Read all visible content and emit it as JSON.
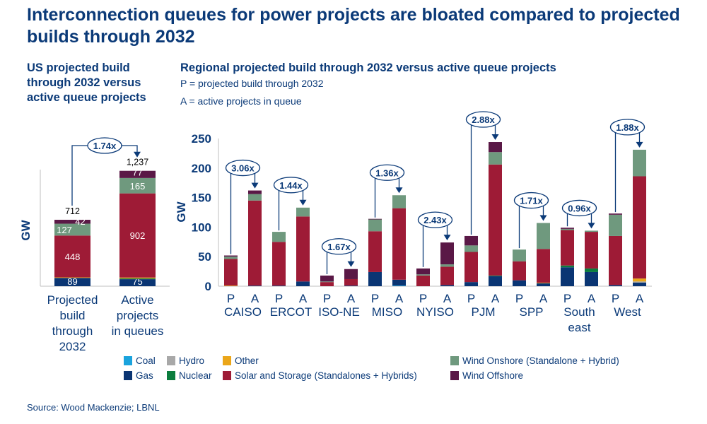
{
  "title": "Interconnection queues for power projects are bloated compared to projected builds through 2032",
  "left_subtitle": "US projected build through 2032 versus active queue projects",
  "right_subtitle": "Regional projected build through 2032 versus active queue projects",
  "legend_note_p": "P = projected build through 2032",
  "legend_note_a": "A = active projects in queue",
  "source": "Source: Wood Mackenzie; LBNL",
  "colors": {
    "coal": "#1aa3dd",
    "gas": "#0a3573",
    "hydro": "#a8a8a8",
    "nuclear": "#0b7d3e",
    "other": "#eba619",
    "solar": "#9e1b36",
    "wind_onshore": "#6f997e",
    "wind_offshore": "#5a1846"
  },
  "chart_data": [
    {
      "type": "bar",
      "stacked": true,
      "ylabel": "GW",
      "categories": [
        "Projected build through 2032",
        "Active projects in queues"
      ],
      "totals": [
        "712",
        "1,237"
      ],
      "ratio_label": "1.74x",
      "series": [
        {
          "key": "gas",
          "name": "Gas",
          "values": [
            89,
            75
          ],
          "labels": [
            "89",
            "75"
          ]
        },
        {
          "key": "nuclear",
          "name": "Nuclear",
          "values": [
            0,
            8
          ],
          "labels": [
            "",
            ""
          ]
        },
        {
          "key": "other",
          "name": "Other",
          "values": [
            6,
            10
          ],
          "labels": [
            "",
            ""
          ]
        },
        {
          "key": "solar",
          "name": "Solar and Storage (Standalones + Hybrids)",
          "values": [
            448,
            902
          ],
          "labels": [
            "448",
            "902"
          ]
        },
        {
          "key": "wind_onshore",
          "name": "Wind Onshore (Standalone + Hybrid)",
          "values": [
            127,
            165
          ],
          "labels": [
            "127",
            "165"
          ]
        },
        {
          "key": "wind_offshore",
          "name": "Wind Offshore",
          "values": [
            42,
            77
          ],
          "labels": [
            "42",
            "77"
          ]
        }
      ]
    },
    {
      "type": "bar",
      "stacked": true,
      "ylabel": "GW",
      "ylim": [
        0,
        250
      ],
      "yticks": [
        0,
        50,
        100,
        150,
        200,
        250
      ],
      "regions": [
        {
          "name": [
            "CAISO"
          ],
          "ratio": "3.06x"
        },
        {
          "name": [
            "ERCOT"
          ],
          "ratio": "1.44x"
        },
        {
          "name": [
            "ISO-NE"
          ],
          "ratio": "1.67x"
        },
        {
          "name": [
            "MISO"
          ],
          "ratio": "1.36x"
        },
        {
          "name": [
            "NYISO"
          ],
          "ratio": "2.43x"
        },
        {
          "name": [
            "PJM"
          ],
          "ratio": "2.88x"
        },
        {
          "name": [
            "SPP"
          ],
          "ratio": "1.71x"
        },
        {
          "name": [
            "South",
            "east"
          ],
          "ratio": "0.96x"
        },
        {
          "name": [
            "West"
          ],
          "ratio": "1.88x"
        }
      ],
      "bar_labels": [
        "P",
        "A"
      ],
      "series": [
        {
          "key": "coal",
          "name": "Coal",
          "values": [
            0,
            0,
            0,
            0,
            0,
            0,
            0,
            1,
            0,
            0,
            0,
            0,
            0,
            0,
            0,
            0,
            0,
            0
          ]
        },
        {
          "key": "gas",
          "name": "Gas",
          "values": [
            0,
            1,
            1,
            8,
            0,
            1,
            24,
            10,
            0,
            2,
            7,
            17,
            10,
            5,
            32,
            24,
            2,
            6
          ]
        },
        {
          "key": "hydro",
          "name": "Hydro",
          "values": [
            0,
            0,
            0,
            0,
            0,
            0,
            0,
            0,
            0,
            0,
            0,
            0,
            0,
            0,
            0,
            0,
            0,
            2
          ]
        },
        {
          "key": "nuclear",
          "name": "Nuclear",
          "values": [
            0,
            0,
            0,
            0,
            0,
            0,
            0,
            0,
            0,
            0,
            0,
            1,
            0,
            0,
            3,
            6,
            0,
            0
          ]
        },
        {
          "key": "other",
          "name": "Other",
          "values": [
            1,
            0,
            0,
            0,
            0,
            0,
            0,
            0,
            0,
            0,
            0,
            0,
            0,
            1,
            0,
            0,
            0,
            5
          ]
        },
        {
          "key": "solar",
          "name": "Solar and Storage (Standalones + Hybrids)",
          "values": [
            45,
            144,
            74,
            110,
            7,
            11,
            69,
            121,
            18,
            31,
            51,
            188,
            32,
            57,
            60,
            62,
            83,
            173
          ]
        },
        {
          "key": "wind_onshore",
          "name": "Wind Onshore (Standalone + Hybrid)",
          "values": [
            4,
            11,
            17,
            15,
            1,
            0,
            20,
            22,
            2,
            4,
            11,
            21,
            20,
            44,
            2,
            2,
            36,
            45
          ]
        },
        {
          "key": "wind_offshore",
          "name": "Wind Offshore",
          "values": [
            2,
            6,
            0,
            0,
            10,
            17,
            1,
            0,
            10,
            37,
            16,
            17,
            0,
            0,
            2,
            0,
            2,
            0
          ]
        }
      ],
      "legend": [
        {
          "key": "coal",
          "label": "Coal"
        },
        {
          "key": "hydro",
          "label": "Hydro"
        },
        {
          "key": "other",
          "label": "Other"
        },
        {
          "key": "wind_onshore",
          "label": "Wind Onshore (Standalone + Hybrid)"
        },
        {
          "key": "gas",
          "label": "Gas"
        },
        {
          "key": "nuclear",
          "label": "Nuclear"
        },
        {
          "key": "solar",
          "label": "Solar and Storage (Standalones + Hybrids)"
        },
        {
          "key": "wind_offshore",
          "label": "Wind Offshore"
        }
      ],
      "legend_position": "bottom"
    }
  ]
}
